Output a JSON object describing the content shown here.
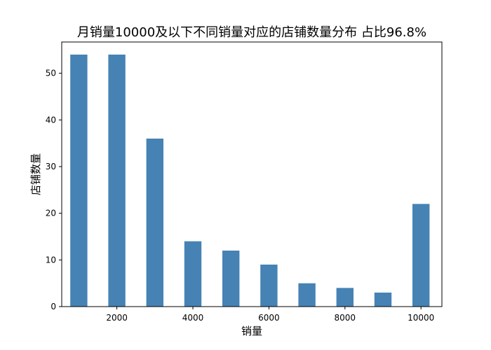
{
  "chart_data": {
    "type": "bar",
    "title": "月销量10000及以下不同销量对应的店铺数量分布 占比96.8%",
    "xlabel": "销量",
    "ylabel": "店铺数量",
    "x": [
      1000,
      2000,
      3000,
      4000,
      5000,
      6000,
      7000,
      8000,
      9000,
      10000
    ],
    "values": [
      54,
      54,
      36,
      14,
      12,
      9,
      5,
      4,
      3,
      22
    ],
    "bar_width": 450,
    "xlim": [
      550,
      10550
    ],
    "ylim": [
      0,
      56.7
    ],
    "xticks": [
      2000,
      4000,
      6000,
      8000,
      10000
    ],
    "yticks": [
      0,
      10,
      20,
      30,
      40,
      50
    ],
    "bar_color": "#4682b4",
    "grid": false,
    "legend": "none"
  }
}
